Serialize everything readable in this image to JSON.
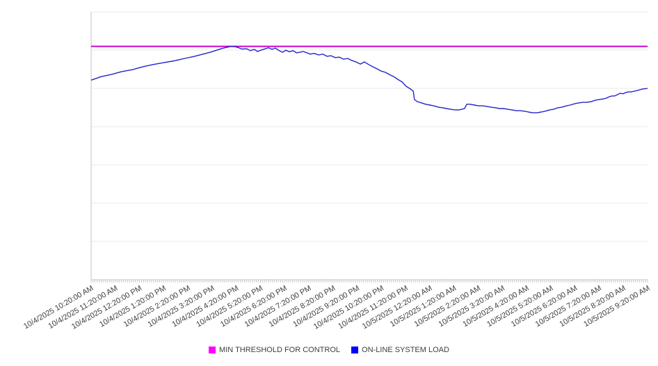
{
  "chart_data": {
    "type": "line",
    "title": "",
    "xlabel": "",
    "ylabel": "",
    "y_axis": {
      "tick_labels_visible": false,
      "ylim": [
        0,
        100
      ],
      "grid_rows": 7,
      "grid": "horizontal"
    },
    "x_axis": {
      "minor_ticks_between_labels": 12,
      "tick_labels": [
        "10/4/2025 10:20:00 AM",
        "10/4/2025 11:20:00 AM",
        "10/4/2025 12:20:00 PM",
        "10/4/2025 1:20:00 PM",
        "10/4/2025 2:20:00 PM",
        "10/4/2025 3:20:00 PM",
        "10/4/2025 4:20:00 PM",
        "10/4/2025 5:20:00 PM",
        "10/4/2025 6:20:00 PM",
        "10/4/2025 7:20:00 PM",
        "10/4/2025 8:20:00 PM",
        "10/4/2025 9:20:00 PM",
        "10/4/2025 10:20:00 PM",
        "10/4/2025 11:20:00 PM",
        "10/5/2025 12:20:00 AM",
        "10/5/2025 1:20:00 AM",
        "10/5/2025 2:20:00 AM",
        "10/5/2025 3:20:00 AM",
        "10/5/2025 4:20:00 AM",
        "10/5/2025 5:20:00 AM",
        "10/5/2025 6:20:00 AM",
        "10/5/2025 7:20:00 AM",
        "10/5/2025 8:20:00 AM",
        "10/5/2025 9:20:00 AM"
      ],
      "label_rotation_deg": -30
    },
    "legend_position": "bottom-center",
    "series": [
      {
        "name": "MIN THRESHOLD FOR CONTROL",
        "kind": "threshold-hline",
        "value": 87.1,
        "line_color": "#cc00cc",
        "swatch_color": "#ff00ff"
      },
      {
        "name": "ON-LINE SYSTEM LOAD",
        "kind": "line",
        "line_color": "#2323cb",
        "swatch_color": "#0000ff",
        "points": [
          [
            0.0,
            74.5
          ],
          [
            0.018,
            75.8
          ],
          [
            0.036,
            76.6
          ],
          [
            0.055,
            77.7
          ],
          [
            0.074,
            78.4
          ],
          [
            0.093,
            79.5
          ],
          [
            0.111,
            80.3
          ],
          [
            0.13,
            81.0
          ],
          [
            0.149,
            81.7
          ],
          [
            0.168,
            82.6
          ],
          [
            0.186,
            83.4
          ],
          [
            0.201,
            84.2
          ],
          [
            0.214,
            84.9
          ],
          [
            0.226,
            85.7
          ],
          [
            0.236,
            86.4
          ],
          [
            0.245,
            86.8
          ],
          [
            0.251,
            87.1
          ],
          [
            0.259,
            87.0
          ],
          [
            0.265,
            86.6
          ],
          [
            0.271,
            86.1
          ],
          [
            0.28,
            86.2
          ],
          [
            0.286,
            85.5
          ],
          [
            0.293,
            86.0
          ],
          [
            0.299,
            85.2
          ],
          [
            0.305,
            85.7
          ],
          [
            0.313,
            86.2
          ],
          [
            0.319,
            86.6
          ],
          [
            0.325,
            86.0
          ],
          [
            0.331,
            86.5
          ],
          [
            0.338,
            85.5
          ],
          [
            0.344,
            84.9
          ],
          [
            0.35,
            85.7
          ],
          [
            0.356,
            85.1
          ],
          [
            0.363,
            85.5
          ],
          [
            0.369,
            84.7
          ],
          [
            0.375,
            84.9
          ],
          [
            0.381,
            85.2
          ],
          [
            0.388,
            84.7
          ],
          [
            0.394,
            84.2
          ],
          [
            0.401,
            84.5
          ],
          [
            0.409,
            83.9
          ],
          [
            0.416,
            84.2
          ],
          [
            0.424,
            83.4
          ],
          [
            0.431,
            83.6
          ],
          [
            0.439,
            82.9
          ],
          [
            0.446,
            83.1
          ],
          [
            0.454,
            82.3
          ],
          [
            0.461,
            82.6
          ],
          [
            0.469,
            81.8
          ],
          [
            0.476,
            81.3
          ],
          [
            0.484,
            80.5
          ],
          [
            0.491,
            81.3
          ],
          [
            0.499,
            80.3
          ],
          [
            0.506,
            79.5
          ],
          [
            0.514,
            78.7
          ],
          [
            0.521,
            77.9
          ],
          [
            0.529,
            77.4
          ],
          [
            0.536,
            76.6
          ],
          [
            0.544,
            75.8
          ],
          [
            0.551,
            74.8
          ],
          [
            0.559,
            73.8
          ],
          [
            0.566,
            72.2
          ],
          [
            0.574,
            71.2
          ],
          [
            0.579,
            70.4
          ],
          [
            0.581,
            67.3
          ],
          [
            0.586,
            66.5
          ],
          [
            0.594,
            66.0
          ],
          [
            0.601,
            65.5
          ],
          [
            0.609,
            65.2
          ],
          [
            0.616,
            64.9
          ],
          [
            0.624,
            64.4
          ],
          [
            0.631,
            64.2
          ],
          [
            0.639,
            63.9
          ],
          [
            0.646,
            63.6
          ],
          [
            0.654,
            63.4
          ],
          [
            0.661,
            63.4
          ],
          [
            0.666,
            63.6
          ],
          [
            0.671,
            63.9
          ],
          [
            0.675,
            65.5
          ],
          [
            0.681,
            65.5
          ],
          [
            0.689,
            65.2
          ],
          [
            0.696,
            64.9
          ],
          [
            0.704,
            64.9
          ],
          [
            0.711,
            64.7
          ],
          [
            0.719,
            64.4
          ],
          [
            0.726,
            64.2
          ],
          [
            0.734,
            63.9
          ],
          [
            0.741,
            63.9
          ],
          [
            0.749,
            63.6
          ],
          [
            0.756,
            63.4
          ],
          [
            0.764,
            63.1
          ],
          [
            0.771,
            63.1
          ],
          [
            0.779,
            62.9
          ],
          [
            0.786,
            62.6
          ],
          [
            0.794,
            62.3
          ],
          [
            0.801,
            62.3
          ],
          [
            0.809,
            62.6
          ],
          [
            0.816,
            62.9
          ],
          [
            0.824,
            63.4
          ],
          [
            0.831,
            63.6
          ],
          [
            0.839,
            64.2
          ],
          [
            0.846,
            64.4
          ],
          [
            0.854,
            64.9
          ],
          [
            0.861,
            65.2
          ],
          [
            0.869,
            65.7
          ],
          [
            0.876,
            66.0
          ],
          [
            0.884,
            66.2
          ],
          [
            0.891,
            66.2
          ],
          [
            0.899,
            66.5
          ],
          [
            0.906,
            67.0
          ],
          [
            0.914,
            67.3
          ],
          [
            0.921,
            67.5
          ],
          [
            0.926,
            67.8
          ],
          [
            0.931,
            68.3
          ],
          [
            0.936,
            68.6
          ],
          [
            0.941,
            68.6
          ],
          [
            0.946,
            69.1
          ],
          [
            0.951,
            69.6
          ],
          [
            0.956,
            69.4
          ],
          [
            0.961,
            69.9
          ],
          [
            0.966,
            70.1
          ],
          [
            0.971,
            70.1
          ],
          [
            0.976,
            70.4
          ],
          [
            0.981,
            70.6
          ],
          [
            0.986,
            70.9
          ],
          [
            0.991,
            71.2
          ],
          [
            1.0,
            71.4
          ]
        ]
      }
    ]
  },
  "legend": {
    "items": [
      {
        "label": "MIN THRESHOLD FOR CONTROL",
        "color": "#ff00ff"
      },
      {
        "label": "ON-LINE SYSTEM LOAD",
        "color": "#0000ff"
      }
    ]
  },
  "style": {
    "background": "#ffffff",
    "grid_color": "#e9e9e9",
    "axis_color": "#c3c3c3",
    "tick_color": "#c9c9c9",
    "label_color": "#3d3d3d"
  }
}
